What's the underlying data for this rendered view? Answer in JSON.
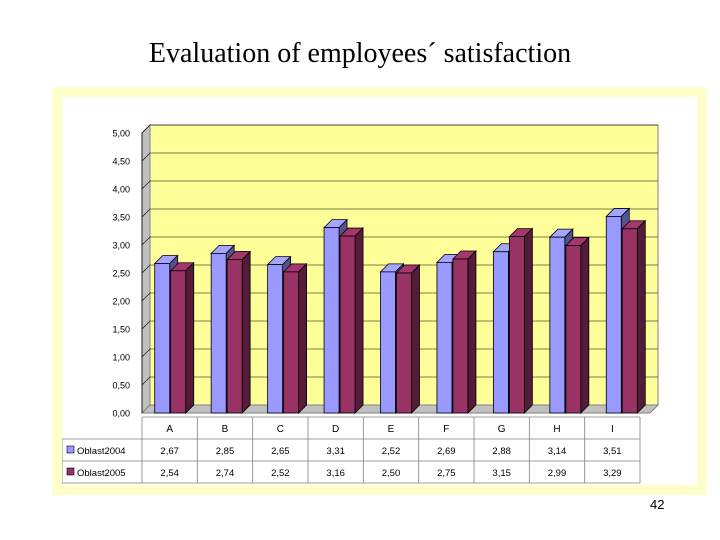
{
  "slide": {
    "title": "Evaluation of employees´ satisfaction",
    "page_number": "42"
  },
  "chart_data": {
    "type": "bar",
    "title": "",
    "xlabel": "",
    "ylabel": "",
    "ylim": [
      0,
      5
    ],
    "yticks": [
      "0,00",
      "0,50",
      "1,00",
      "1,50",
      "2,00",
      "2,50",
      "3,00",
      "3,50",
      "4,00",
      "4,50",
      "5,00"
    ],
    "categories": [
      "A",
      "B",
      "C",
      "D",
      "E",
      "F",
      "G",
      "H",
      "I"
    ],
    "series": [
      {
        "name": "Oblast2004",
        "values": [
          2.67,
          2.85,
          2.65,
          3.31,
          2.52,
          2.69,
          2.88,
          3.14,
          3.51
        ],
        "labels": [
          "2,67",
          "2,85",
          "2,65",
          "3,31",
          "2,52",
          "2,69",
          "2,88",
          "3,14",
          "3,51"
        ],
        "color": "#9999ff"
      },
      {
        "name": "Oblast2005",
        "values": [
          2.54,
          2.74,
          2.52,
          3.16,
          2.5,
          2.75,
          3.15,
          2.99,
          3.29
        ],
        "labels": [
          "2,54",
          "2,74",
          "2,52",
          "3,16",
          "2,50",
          "2,75",
          "3,15",
          "2,99",
          "3,29"
        ],
        "color": "#993366"
      }
    ],
    "grid": true,
    "style": "3d-clustered-column",
    "plot_background": "#ffff99",
    "legend": "data-table-below"
  }
}
